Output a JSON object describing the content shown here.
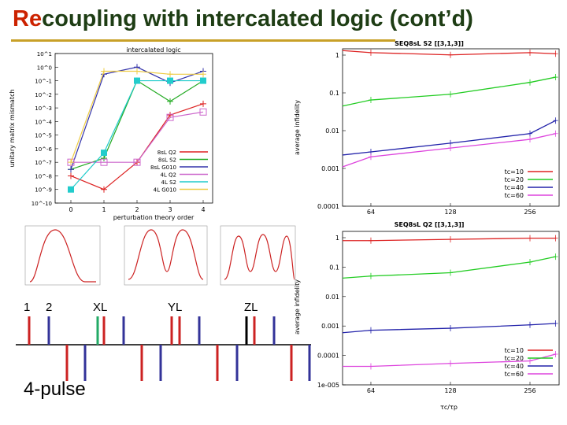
{
  "title": {
    "highlight": "Re",
    "rest": "coupling with intercalated logic (cont’d)"
  },
  "colors": {
    "title_text": "#1e3d14",
    "title_highlight": "#cc2200",
    "title_rule": "#c8a028"
  },
  "left_plot": {
    "title": "intercalated logic",
    "ylabel": "unitary matrix mismatch",
    "xlabel": "perturbation theory order",
    "xticks": [
      "0",
      "1",
      "2",
      "3",
      "4"
    ],
    "yticks": [
      "10^1",
      "10^0",
      "10^-1",
      "10^-2",
      "10^-3",
      "10^-4",
      "10^-5",
      "10^-6",
      "10^-7",
      "10^-8",
      "10^-9",
      "10^-10"
    ],
    "legend": [
      "8sL Q2",
      "8sL S2",
      "8sL G010",
      "4L Q2",
      "4L S2",
      "4L G010"
    ]
  },
  "right_top": {
    "title": "SEQ8sL S2 [[3,1,3]]",
    "ylabel": "average infidelity",
    "xticks": [
      "64",
      "128",
      "256"
    ],
    "yticks": [
      "1",
      "0.1",
      "0.01",
      "0.001",
      "0.0001"
    ],
    "legend": [
      "tc=10",
      "tc=20",
      "tc=40",
      "tc=60"
    ]
  },
  "right_bottom": {
    "title": "SEQ8sL Q2 [[3,1,3]]",
    "ylabel": "average infidelity",
    "xticks": [
      "64",
      "128",
      "256"
    ],
    "yticks": [
      "1",
      "0.1",
      "0.01",
      "0.001",
      "0.0001",
      "1e-005"
    ],
    "xlabel": "τc/τp",
    "legend": [
      "tc=10",
      "tc=20",
      "tc=40",
      "tc=60"
    ]
  },
  "pulse_diagram": {
    "labels": [
      "1",
      "2",
      "XL",
      "YL",
      "ZL"
    ],
    "caption": "4-pulse"
  },
  "chart_data": [
    {
      "type": "line",
      "title": "intercalated logic",
      "xlabel": "perturbation theory order",
      "ylabel": "unitary matrix mismatch",
      "x": [
        0,
        1,
        2,
        3,
        4
      ],
      "log_y": true,
      "ylim": [
        1e-10,
        10
      ],
      "series": [
        {
          "name": "8sL Q2",
          "color": "#dd2222",
          "values": [
            1e-08,
            1e-09,
            1e-07,
            0.0003,
            0.002
          ]
        },
        {
          "name": "8sL S2",
          "color": "#22aa22",
          "values": [
            3e-08,
            2e-07,
            0.1,
            0.003,
            0.1
          ]
        },
        {
          "name": "8sL G010",
          "color": "#3333aa",
          "values": [
            3e-08,
            0.3,
            1.0,
            0.07,
            0.5
          ]
        },
        {
          "name": "4L Q2",
          "color": "#cc66cc",
          "values": [
            1e-07,
            1e-07,
            1e-07,
            0.0002,
            0.0005
          ]
        },
        {
          "name": "4L S2",
          "color": "#22cccc",
          "values": [
            1e-09,
            5e-07,
            0.1,
            0.1,
            0.1
          ]
        },
        {
          "name": "4L G010",
          "color": "#eecc44",
          "values": [
            1e-07,
            0.5,
            0.5,
            0.3,
            0.3
          ]
        }
      ]
    },
    {
      "type": "line",
      "title": "SEQ8sL S2 [[3,1,3]]",
      "ylabel": "average infidelity",
      "x": [
        50,
        64,
        128,
        256,
        320
      ],
      "log_x": true,
      "log_y": true,
      "ylim": [
        0.0001,
        1
      ],
      "series": [
        {
          "name": "tc=10",
          "color": "#dd2222",
          "values": [
            0.9,
            0.8,
            0.7,
            0.8,
            0.75
          ]
        },
        {
          "name": "tc=20",
          "color": "#22cc22",
          "values": [
            0.035,
            0.05,
            0.07,
            0.14,
            0.19
          ]
        },
        {
          "name": "tc=40",
          "color": "#2222aa",
          "values": [
            0.002,
            0.0024,
            0.004,
            0.007,
            0.015
          ]
        },
        {
          "name": "tc=60",
          "color": "#dd44dd",
          "values": [
            0.001,
            0.0018,
            0.003,
            0.005,
            0.007
          ]
        }
      ]
    },
    {
      "type": "line",
      "title": "SEQ8sL Q2 [[3,1,3]]",
      "xlabel": "τc/τp",
      "ylabel": "average infidelity",
      "x": [
        50,
        64,
        128,
        256,
        320
      ],
      "log_x": true,
      "log_y": true,
      "ylim": [
        1e-05,
        1
      ],
      "series": [
        {
          "name": "tc=10",
          "color": "#dd2222",
          "values": [
            0.5,
            0.5,
            0.55,
            0.6,
            0.6
          ]
        },
        {
          "name": "tc=20",
          "color": "#22cc22",
          "values": [
            0.03,
            0.035,
            0.045,
            0.1,
            0.15
          ]
        },
        {
          "name": "tc=40",
          "color": "#2222aa",
          "values": [
            0.0005,
            0.0006,
            0.0007,
            0.0009,
            0.001
          ]
        },
        {
          "name": "tc=60",
          "color": "#dd44dd",
          "values": [
            4e-05,
            4e-05,
            5e-05,
            6e-05,
            0.0001
          ]
        }
      ]
    }
  ]
}
